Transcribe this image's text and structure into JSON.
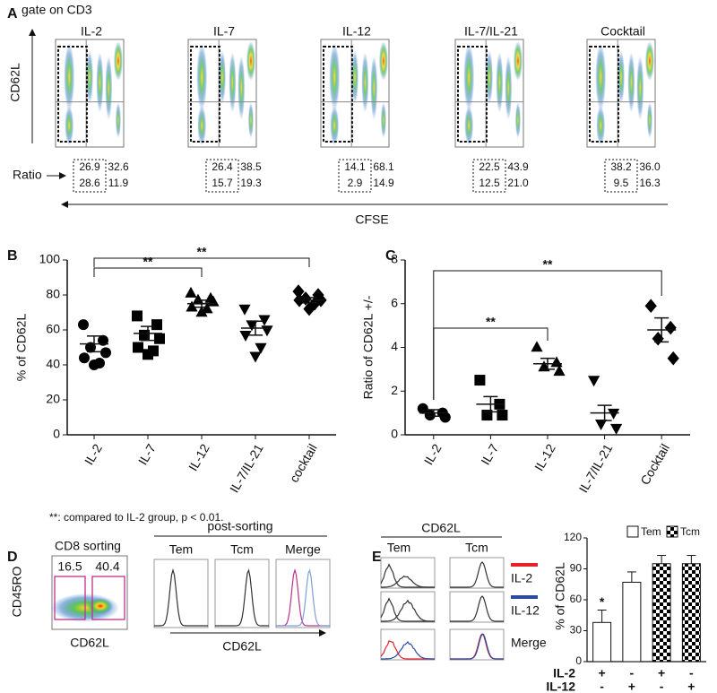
{
  "panel_labels": {
    "a": "A",
    "b": "B",
    "c": "C",
    "d": "D",
    "e": "E"
  },
  "panel_a": {
    "gate": "gate on CD3",
    "y_label": "CD62L",
    "x_label": "CFSE",
    "ratio_label": "Ratio",
    "plots": [
      {
        "title": "IL-2",
        "ratios": [
          [
            "26.9",
            "32.6"
          ],
          [
            "28.6",
            "11.9"
          ]
        ]
      },
      {
        "title": "IL-7",
        "ratios": [
          [
            "26.4",
            "38.5"
          ],
          [
            "15.7",
            "19.3"
          ]
        ]
      },
      {
        "title": "IL-12",
        "ratios": [
          [
            "14.1",
            "68.1"
          ],
          [
            "2.9",
            "14.9"
          ]
        ]
      },
      {
        "title": "IL-7/IL-21",
        "ratios": [
          [
            "22.5",
            "43.9"
          ],
          [
            "12.5",
            "21.0"
          ]
        ]
      },
      {
        "title": "Cocktail",
        "ratios": [
          [
            "38.2",
            "36.0"
          ],
          [
            "9.5",
            "16.3"
          ]
        ]
      }
    ]
  },
  "chart_data": [
    {
      "type": "scatter",
      "y_label": "% of CD62L",
      "categories": [
        "IL-2",
        "IL-7",
        "IL-12",
        "IL-7/IL-21",
        "cocktail"
      ],
      "markers": [
        "circle",
        "square",
        "triangle-up",
        "triangle-down",
        "diamond"
      ],
      "values": [
        [
          63,
          54,
          50,
          47,
          44,
          41,
          40
        ],
        [
          68,
          63,
          57,
          55,
          50,
          48,
          46
        ],
        [
          81,
          78,
          77,
          76,
          73,
          72,
          70
        ],
        [
          72,
          66,
          63,
          60,
          57,
          50,
          45
        ],
        [
          82,
          80,
          78,
          77,
          77,
          75,
          72
        ]
      ],
      "means": [
        52,
        58,
        75,
        61,
        77
      ],
      "sem": [
        4.5,
        4,
        2,
        4,
        1.5
      ],
      "ylim": [
        0,
        100
      ],
      "yticks": [
        0,
        20,
        40,
        60,
        80,
        100
      ],
      "annotations": [
        "**",
        "**"
      ],
      "color": "#000000"
    },
    {
      "type": "scatter",
      "y_label": "Ratio of CD62L +/-",
      "categories": [
        "IL-2",
        "IL-7",
        "IL-12",
        "IL-7/IL-21",
        "Cocktail"
      ],
      "markers": [
        "circle",
        "square",
        "triangle-up",
        "triangle-down",
        "diamond"
      ],
      "values": [
        [
          1.2,
          1.0,
          0.9,
          0.8
        ],
        [
          2.5,
          1.4,
          0.9,
          0.9
        ],
        [
          4.0,
          3.3,
          3.1,
          2.9
        ],
        [
          2.5,
          1.0,
          0.5,
          0.3
        ],
        [
          5.9,
          4.9,
          4.4,
          3.5
        ]
      ],
      "means": [
        1.0,
        1.4,
        3.25,
        1.0,
        4.8
      ],
      "sem": [
        0.15,
        0.35,
        0.25,
        0.35,
        0.55
      ],
      "ylim": [
        0,
        8
      ],
      "yticks": [
        0,
        2,
        4,
        6,
        8
      ],
      "annotations": [
        "**",
        "**"
      ],
      "color": "#000000"
    },
    {
      "type": "bar",
      "y_label": "% of CD62L",
      "ylim": [
        0,
        120
      ],
      "yticks": [
        0,
        30,
        60,
        90,
        120
      ],
      "series": [
        {
          "name": "Tem",
          "fill": "white",
          "values": [
            38,
            77
          ],
          "errors": [
            12,
            10
          ],
          "significance": [
            "*",
            null
          ]
        },
        {
          "name": "Tcm",
          "fill": "checkered",
          "values": [
            95,
            95
          ],
          "errors": [
            8,
            8
          ],
          "significance": [
            null,
            null
          ]
        }
      ],
      "conditions": [
        {
          "label": "IL-2",
          "signs": [
            "+",
            "-",
            "+",
            "-"
          ]
        },
        {
          "label": "IL-12",
          "signs": [
            "-",
            "+",
            "-",
            "+"
          ]
        }
      ]
    }
  ],
  "footnote": "**: compared to IL-2 group, p < 0.01.",
  "panel_d": {
    "title": "CD8 sorting",
    "y_label": "CD45RO",
    "x_label": "CD62L",
    "gates": [
      16.5,
      40.4
    ],
    "post_title": "post-sorting",
    "columns": [
      "Tem",
      "Tcm",
      "Merge"
    ],
    "hist_x_label": "CD62L"
  },
  "panel_e": {
    "title": "CD62L",
    "columns": [
      "Tem",
      "Tcm"
    ],
    "legend": [
      {
        "label": "IL-2",
        "color": "#e8202a"
      },
      {
        "label": "IL-12",
        "color": "#2b4aa0"
      }
    ],
    "merge_label": "Merge"
  }
}
